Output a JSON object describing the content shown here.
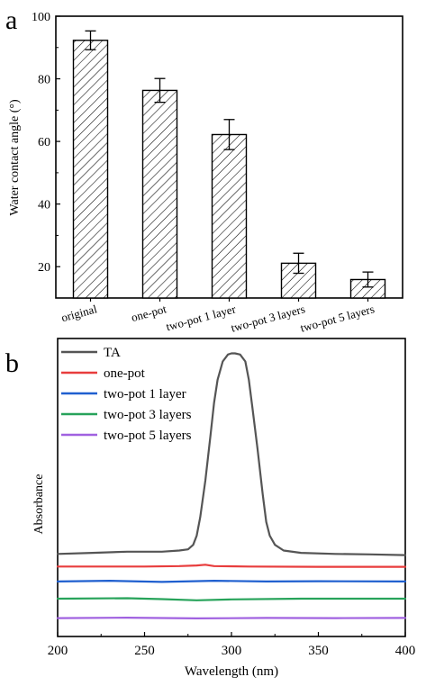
{
  "chart_data": [
    {
      "panel_label": "a",
      "type": "bar",
      "title": "",
      "xlabel": "",
      "ylabel": "Water contact angle (°)",
      "categories": [
        "original",
        "one-pot",
        "two-pot 1 layer",
        "two-pot 3 layers",
        "two-pot 5 layers"
      ],
      "values": [
        92.3,
        76.3,
        62.2,
        21.1,
        15.9
      ],
      "errors": [
        3.0,
        3.8,
        4.8,
        3.2,
        2.4
      ],
      "ylim": [
        10,
        100
      ],
      "yticks": [
        20,
        40,
        60,
        80,
        100
      ],
      "bar_fill": "hatched",
      "grid": false
    },
    {
      "panel_label": "b",
      "type": "line",
      "title": "",
      "xlabel": "Wavelength (nm)",
      "ylabel": "Absorbance",
      "xlim": [
        200,
        400
      ],
      "xticks": [
        200,
        250,
        300,
        350,
        400
      ],
      "ylim": [
        0,
        1.3
      ],
      "y_ticks_labeled": false,
      "legend_position": "top-left",
      "grid": false,
      "series": [
        {
          "name": "TA",
          "color": "#555555",
          "x": [
            200,
            220,
            240,
            260,
            270,
            275,
            278,
            280,
            282,
            285,
            288,
            290,
            292,
            295,
            298,
            300,
            302,
            305,
            308,
            310,
            312,
            315,
            318,
            320,
            322,
            325,
            330,
            340,
            360,
            380,
            400
          ],
          "y": [
            0.36,
            0.365,
            0.37,
            0.37,
            0.375,
            0.38,
            0.4,
            0.44,
            0.52,
            0.68,
            0.88,
            1.02,
            1.12,
            1.2,
            1.23,
            1.235,
            1.235,
            1.23,
            1.2,
            1.12,
            1.0,
            0.82,
            0.62,
            0.5,
            0.44,
            0.4,
            0.375,
            0.365,
            0.36,
            0.358,
            0.355
          ]
        },
        {
          "name": "one-pot",
          "color": "#e83d3d",
          "x": [
            200,
            250,
            270,
            280,
            285,
            290,
            310,
            350,
            400
          ],
          "y": [
            0.305,
            0.305,
            0.307,
            0.31,
            0.313,
            0.307,
            0.305,
            0.304,
            0.304
          ]
        },
        {
          "name": "two-pot 1 layer",
          "color": "#1f5fcf",
          "x": [
            200,
            230,
            260,
            290,
            320,
            350,
            400
          ],
          "y": [
            0.24,
            0.243,
            0.238,
            0.243,
            0.24,
            0.241,
            0.24
          ]
        },
        {
          "name": "two-pot 3 layers",
          "color": "#27a35a",
          "x": [
            200,
            240,
            260,
            280,
            300,
            340,
            400
          ],
          "y": [
            0.165,
            0.167,
            0.163,
            0.158,
            0.162,
            0.165,
            0.165
          ]
        },
        {
          "name": "two-pot 5 layers",
          "color": "#a061e0",
          "x": [
            200,
            240,
            280,
            320,
            360,
            400
          ],
          "y": [
            0.08,
            0.082,
            0.079,
            0.081,
            0.08,
            0.081
          ]
        }
      ]
    }
  ]
}
